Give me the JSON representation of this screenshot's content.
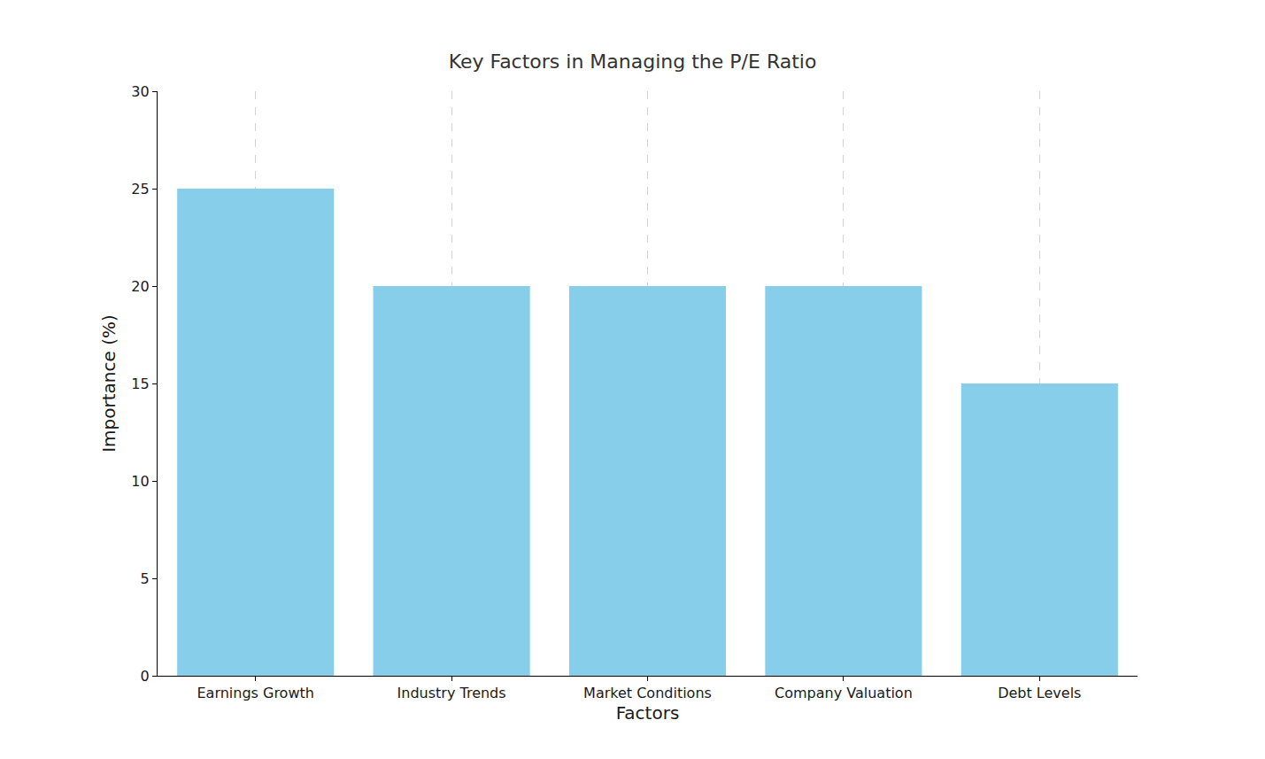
{
  "chart_data": {
    "type": "bar",
    "title": "Key Factors in Managing the P/E Ratio",
    "x_label": "Factors",
    "y_label": "Importance (%)",
    "categories": [
      "Earnings Growth",
      "Industry Trends",
      "Market Conditions",
      "Company Valuation",
      "Debt Levels"
    ],
    "values": [
      25,
      20,
      20,
      20,
      15
    ],
    "color": "#87ceeb",
    "ylim": [
      0,
      30
    ],
    "yticks": [
      0,
      5,
      10,
      15,
      20,
      25,
      30
    ],
    "grid": "x"
  }
}
